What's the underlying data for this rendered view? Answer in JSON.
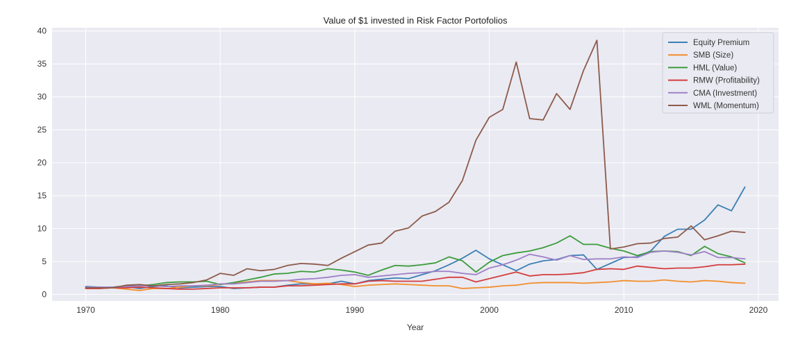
{
  "chart_data": {
    "type": "line",
    "title": "Value of $1 invested in Risk Factor Portofolios",
    "xlabel": "Year",
    "ylabel": "",
    "xlim": [
      1967.5,
      2021.5
    ],
    "ylim": [
      -1,
      40.5
    ],
    "x_ticks": [
      1970,
      1980,
      1990,
      2000,
      2010,
      2020
    ],
    "y_ticks": [
      0,
      5,
      10,
      15,
      20,
      25,
      30,
      35,
      40
    ],
    "grid": true,
    "legend_position": "top-right",
    "x": [
      1970,
      1971,
      1972,
      1973,
      1974,
      1975,
      1976,
      1977,
      1978,
      1979,
      1980,
      1981,
      1982,
      1983,
      1984,
      1985,
      1986,
      1987,
      1988,
      1989,
      1990,
      1991,
      1992,
      1993,
      1994,
      1995,
      1996,
      1997,
      1998,
      1999,
      2000,
      2001,
      2002,
      2003,
      2004,
      2005,
      2006,
      2007,
      2008,
      2009,
      2010,
      2011,
      2012,
      2013,
      2014,
      2015,
      2016,
      2017,
      2018,
      2019
    ],
    "series": [
      {
        "name": "Equity Premium",
        "color": "#3a7fb4",
        "values": [
          1.2,
          1.1,
          1.0,
          1.2,
          0.9,
          1.2,
          1.3,
          1.0,
          1.1,
          1.2,
          1.2,
          0.9,
          1.0,
          1.1,
          1.1,
          1.4,
          1.6,
          1.6,
          1.6,
          2.0,
          1.6,
          2.1,
          2.3,
          2.5,
          2.4,
          3.0,
          3.6,
          4.5,
          5.5,
          6.7,
          5.4,
          4.5,
          3.6,
          4.6,
          5.1,
          5.3,
          5.9,
          6.0,
          3.8,
          4.7,
          5.6,
          5.7,
          6.6,
          8.8,
          9.9,
          9.9,
          11.3,
          13.6,
          12.7,
          16.3
        ]
      },
      {
        "name": "SMB (Size)",
        "color": "#f28e2b",
        "values": [
          0.9,
          0.9,
          1.0,
          0.8,
          0.6,
          0.9,
          0.9,
          1.1,
          1.3,
          1.3,
          1.5,
          1.7,
          1.9,
          2.1,
          2.1,
          2.1,
          1.8,
          1.6,
          1.7,
          1.5,
          1.2,
          1.4,
          1.5,
          1.6,
          1.5,
          1.4,
          1.3,
          1.3,
          0.9,
          1.0,
          1.1,
          1.3,
          1.4,
          1.7,
          1.8,
          1.8,
          1.8,
          1.7,
          1.8,
          1.9,
          2.1,
          2.0,
          2.0,
          2.2,
          2.0,
          1.9,
          2.1,
          2.0,
          1.8,
          1.7
        ]
      },
      {
        "name": "HML (Value)",
        "color": "#3a9c3a",
        "values": [
          1.0,
          1.0,
          1.1,
          1.3,
          1.3,
          1.5,
          1.8,
          1.9,
          1.9,
          2.0,
          1.5,
          1.8,
          2.2,
          2.6,
          3.1,
          3.2,
          3.5,
          3.4,
          3.9,
          3.7,
          3.4,
          2.9,
          3.7,
          4.4,
          4.3,
          4.5,
          4.8,
          5.7,
          5.1,
          3.4,
          4.9,
          5.9,
          6.3,
          6.6,
          7.1,
          7.8,
          8.9,
          7.6,
          7.6,
          7.0,
          6.6,
          5.9,
          6.5,
          6.6,
          6.5,
          5.9,
          7.3,
          6.2,
          5.7,
          4.8
        ]
      },
      {
        "name": "RMW (Profitability)",
        "color": "#d43d3d",
        "values": [
          0.9,
          0.9,
          1.0,
          1.0,
          1.1,
          1.0,
          0.9,
          0.8,
          0.8,
          0.9,
          1.0,
          1.0,
          1.0,
          1.1,
          1.1,
          1.3,
          1.3,
          1.4,
          1.5,
          1.6,
          1.6,
          2.0,
          2.1,
          2.0,
          2.0,
          2.0,
          2.3,
          2.6,
          2.6,
          1.9,
          2.4,
          2.9,
          3.4,
          2.8,
          3.0,
          3.0,
          3.1,
          3.3,
          3.8,
          3.9,
          3.8,
          4.3,
          4.1,
          3.9,
          4.0,
          4.0,
          4.2,
          4.5,
          4.5,
          4.6
        ]
      },
      {
        "name": "CMA (Investment)",
        "color": "#9d7fc7",
        "values": [
          1.1,
          1.1,
          1.1,
          1.2,
          1.3,
          1.3,
          1.2,
          1.3,
          1.3,
          1.4,
          1.6,
          1.6,
          1.8,
          2.0,
          2.0,
          2.1,
          2.3,
          2.4,
          2.6,
          2.9,
          3.0,
          2.6,
          2.8,
          3.0,
          3.2,
          3.3,
          3.5,
          3.5,
          3.2,
          3.0,
          4.0,
          4.5,
          5.2,
          6.1,
          5.7,
          5.2,
          5.9,
          5.3,
          5.4,
          5.4,
          5.7,
          5.6,
          6.4,
          6.6,
          6.4,
          6.0,
          6.5,
          5.6,
          5.6,
          5.4
        ]
      },
      {
        "name": "WML (Momentum)",
        "color": "#8c5a4a",
        "values": [
          1.0,
          1.0,
          1.0,
          1.4,
          1.5,
          1.3,
          1.5,
          1.6,
          1.8,
          2.2,
          3.2,
          2.9,
          3.9,
          3.6,
          3.8,
          4.4,
          4.7,
          4.6,
          4.4,
          5.5,
          6.5,
          7.5,
          7.8,
          9.6,
          10.1,
          11.9,
          12.6,
          14.0,
          17.3,
          23.4,
          26.9,
          28.1,
          35.3,
          26.7,
          26.5,
          30.5,
          28.1,
          34.0,
          38.6,
          6.9,
          7.2,
          7.7,
          7.8,
          8.5,
          8.7,
          10.4,
          8.3,
          8.9,
          9.6,
          9.4
        ]
      }
    ]
  }
}
